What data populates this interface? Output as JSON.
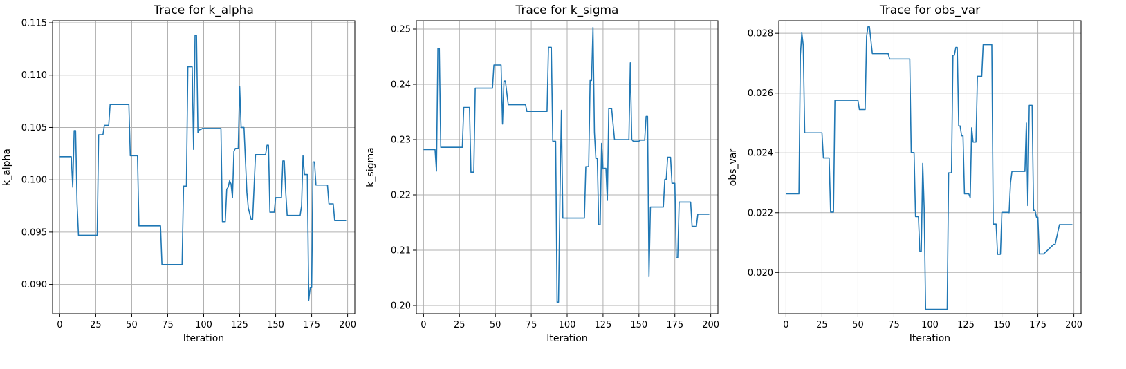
{
  "colors": {
    "line": "#1f77b4",
    "grid": "#b0b0b0"
  },
  "chart_data": [
    {
      "type": "line",
      "title": "Trace for k_alpha",
      "xlabel": "Iteration",
      "ylabel": "k_alpha",
      "xlim": [
        -5,
        205
      ],
      "ylim": [
        0.0872,
        0.1152
      ],
      "xticks": [
        0,
        25,
        50,
        75,
        100,
        125,
        150,
        175,
        200
      ],
      "yticks": [
        0.09,
        0.095,
        0.1,
        0.105,
        0.11,
        0.115
      ],
      "ytick_labels": [
        "0.090",
        "0.095",
        "0.100",
        "0.105",
        "0.110",
        "0.115"
      ],
      "grid": true,
      "series": [
        {
          "x": [
            0,
            8,
            9,
            10,
            11,
            12,
            13,
            26,
            27,
            30,
            31,
            34,
            35,
            48,
            49,
            54,
            55,
            70,
            71,
            85,
            86,
            88,
            89,
            92,
            93,
            94,
            95,
            96,
            97,
            98,
            99,
            112,
            113,
            115,
            116,
            117,
            118,
            119,
            120,
            121,
            122,
            123,
            124,
            125,
            126,
            127,
            128,
            130,
            131,
            133,
            134,
            136,
            137,
            143,
            144,
            145,
            146,
            149,
            150,
            154,
            155,
            156,
            157,
            158,
            159,
            167,
            168,
            169,
            170,
            172,
            173,
            174,
            175,
            176,
            177,
            178,
            179,
            186,
            187,
            190,
            191,
            199
          ],
          "y": [
            0.1022,
            0.1022,
            0.0993,
            0.1047,
            0.1047,
            0.0978,
            0.0947,
            0.0947,
            0.1043,
            0.1043,
            0.1052,
            0.1052,
            0.1072,
            0.1072,
            0.1023,
            0.1023,
            0.0956,
            0.0956,
            0.0919,
            0.0919,
            0.0994,
            0.0994,
            0.1108,
            0.1108,
            0.1029,
            0.1138,
            0.1138,
            0.1045,
            0.1048,
            0.1048,
            0.1049,
            0.1049,
            0.096,
            0.096,
            0.0991,
            0.0993,
            0.0999,
            0.0996,
            0.0983,
            0.1027,
            0.103,
            0.103,
            0.103,
            0.1089,
            0.105,
            0.105,
            0.105,
            0.0988,
            0.0973,
            0.0962,
            0.0962,
            0.1024,
            0.1024,
            0.1024,
            0.1033,
            0.1033,
            0.0969,
            0.0969,
            0.0983,
            0.0983,
            0.1018,
            0.1018,
            0.0988,
            0.0966,
            0.0966,
            0.0966,
            0.0975,
            0.1023,
            0.1005,
            0.1005,
            0.0885,
            0.0897,
            0.0897,
            0.1017,
            0.1017,
            0.0995,
            0.0995,
            0.0995,
            0.0977,
            0.0977,
            0.0961,
            0.0961
          ]
        }
      ]
    },
    {
      "type": "line",
      "title": "Trace for k_sigma",
      "xlabel": "Iteration",
      "ylabel": "k_sigma",
      "xlim": [
        -5,
        205
      ],
      "ylim": [
        0.1985,
        0.2515
      ],
      "xticks": [
        0,
        25,
        50,
        75,
        100,
        125,
        150,
        175,
        200
      ],
      "yticks": [
        0.2,
        0.21,
        0.22,
        0.23,
        0.24,
        0.25
      ],
      "ytick_labels": [
        "0.20",
        "0.21",
        "0.22",
        "0.23",
        "0.24",
        "0.25"
      ],
      "grid": true,
      "series": [
        {
          "x": [
            0,
            8,
            9,
            10,
            11,
            12,
            13,
            27,
            28,
            32,
            33,
            35,
            36,
            48,
            49,
            54,
            55,
            56,
            57,
            59,
            60,
            71,
            72,
            86,
            87,
            89,
            90,
            92,
            93,
            94,
            95,
            96,
            97,
            98,
            99,
            112,
            113,
            115,
            116,
            117,
            118,
            119,
            120,
            121,
            122,
            123,
            124,
            125,
            126,
            127,
            128,
            129,
            130,
            131,
            133,
            134,
            135,
            136,
            143,
            144,
            145,
            146,
            150,
            151,
            154,
            155,
            156,
            157,
            158,
            159,
            166,
            167,
            168,
            169,
            170,
            171,
            172,
            173,
            174,
            175,
            176,
            177,
            178,
            179,
            186,
            187,
            190,
            191,
            199
          ],
          "y": [
            0.2282,
            0.2282,
            0.2243,
            0.2465,
            0.2465,
            0.2286,
            0.2286,
            0.2286,
            0.2358,
            0.2358,
            0.2241,
            0.2241,
            0.2393,
            0.2393,
            0.2435,
            0.2435,
            0.2328,
            0.2406,
            0.2406,
            0.2363,
            0.2363,
            0.2363,
            0.2351,
            0.2351,
            0.2467,
            0.2467,
            0.2297,
            0.2297,
            0.2006,
            0.2006,
            0.2198,
            0.2353,
            0.2158,
            0.2158,
            0.2158,
            0.2158,
            0.2251,
            0.2251,
            0.2407,
            0.2407,
            0.2503,
            0.2313,
            0.2266,
            0.2266,
            0.2146,
            0.2146,
            0.2293,
            0.2247,
            0.2248,
            0.2248,
            0.219,
            0.2356,
            0.2356,
            0.2356,
            0.23,
            0.23,
            0.23,
            0.23,
            0.23,
            0.2439,
            0.23,
            0.2297,
            0.2297,
            0.2299,
            0.2299,
            0.2342,
            0.2342,
            0.2052,
            0.2178,
            0.2178,
            0.2178,
            0.2178,
            0.2228,
            0.2228,
            0.2268,
            0.2268,
            0.2268,
            0.2221,
            0.2221,
            0.2221,
            0.2086,
            0.2086,
            0.2187,
            0.2187,
            0.2187,
            0.2143,
            0.2143,
            0.2165,
            0.2165
          ]
        }
      ]
    },
    {
      "type": "line",
      "title": "Trace for obs_var",
      "xlabel": "Iteration",
      "ylabel": "obs_var",
      "xlim": [
        -5,
        205
      ],
      "ylim": [
        0.01862,
        0.02842
      ],
      "xticks": [
        0,
        25,
        50,
        75,
        100,
        125,
        150,
        175,
        200
      ],
      "yticks": [
        0.02,
        0.022,
        0.024,
        0.026,
        0.028
      ],
      "ytick_labels": [
        "0.020",
        "0.022",
        "0.024",
        "0.026",
        "0.028"
      ],
      "grid": true,
      "series": [
        {
          "x": [
            0,
            8,
            9,
            10,
            11,
            12,
            13,
            25,
            26,
            30,
            31,
            33,
            34,
            50,
            51,
            55,
            56,
            57,
            58,
            60,
            61,
            71,
            72,
            86,
            87,
            89,
            90,
            92,
            93,
            94,
            95,
            96,
            97,
            98,
            99,
            112,
            113,
            115,
            116,
            117,
            118,
            119,
            120,
            121,
            122,
            123,
            124,
            125,
            126,
            127,
            128,
            129,
            130,
            131,
            132,
            133,
            134,
            135,
            136,
            137,
            143,
            144,
            145,
            146,
            147,
            149,
            150,
            154,
            155,
            156,
            157,
            158,
            159,
            166,
            167,
            168,
            169,
            170,
            171,
            172,
            173,
            174,
            175,
            176,
            177,
            178,
            179,
            186,
            187,
            190,
            191,
            199
          ],
          "y": [
            0.02263,
            0.02263,
            0.02263,
            0.02727,
            0.02802,
            0.0276,
            0.02467,
            0.02467,
            0.02383,
            0.02383,
            0.02202,
            0.02202,
            0.02576,
            0.02576,
            0.02545,
            0.02545,
            0.0279,
            0.02822,
            0.02822,
            0.02732,
            0.02732,
            0.02732,
            0.02714,
            0.02714,
            0.02401,
            0.02401,
            0.02187,
            0.02187,
            0.02071,
            0.02071,
            0.02365,
            0.02216,
            0.01877,
            0.01877,
            0.01877,
            0.01877,
            0.02333,
            0.02333,
            0.02727,
            0.02727,
            0.02753,
            0.02753,
            0.0249,
            0.0249,
            0.02457,
            0.02457,
            0.02263,
            0.02263,
            0.02263,
            0.02263,
            0.0225,
            0.02484,
            0.02436,
            0.02436,
            0.02436,
            0.02656,
            0.02656,
            0.02656,
            0.02656,
            0.02762,
            0.02762,
            0.02162,
            0.02162,
            0.02162,
            0.02061,
            0.02061,
            0.02201,
            0.02201,
            0.022,
            0.023,
            0.02338,
            0.02338,
            0.02338,
            0.02338,
            0.025,
            0.02224,
            0.02559,
            0.02559,
            0.02559,
            0.02208,
            0.02208,
            0.02185,
            0.02185,
            0.02062,
            0.02062,
            0.02062,
            0.02062,
            0.02094,
            0.02094,
            0.0216,
            0.0216,
            0.0216
          ]
        }
      ]
    }
  ]
}
